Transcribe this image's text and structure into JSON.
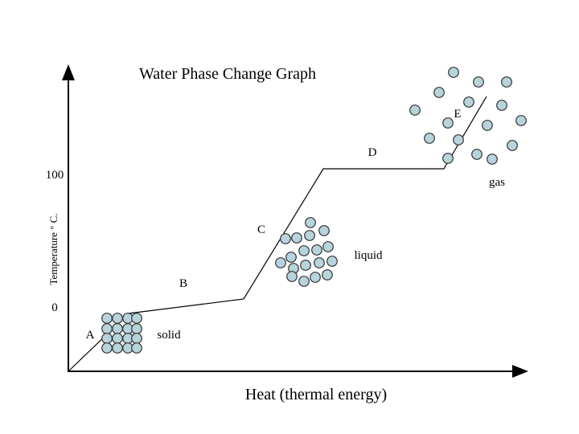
{
  "title": "Water Phase Change Graph",
  "y_axis_label": "Temperature ° C.",
  "x_axis_label": "Heat (thermal energy)",
  "y_ticks": [
    "100",
    "0"
  ],
  "points": [
    "A",
    "B",
    "C",
    "D",
    "E"
  ],
  "states": [
    "solid",
    "liquid",
    "gas"
  ]
}
